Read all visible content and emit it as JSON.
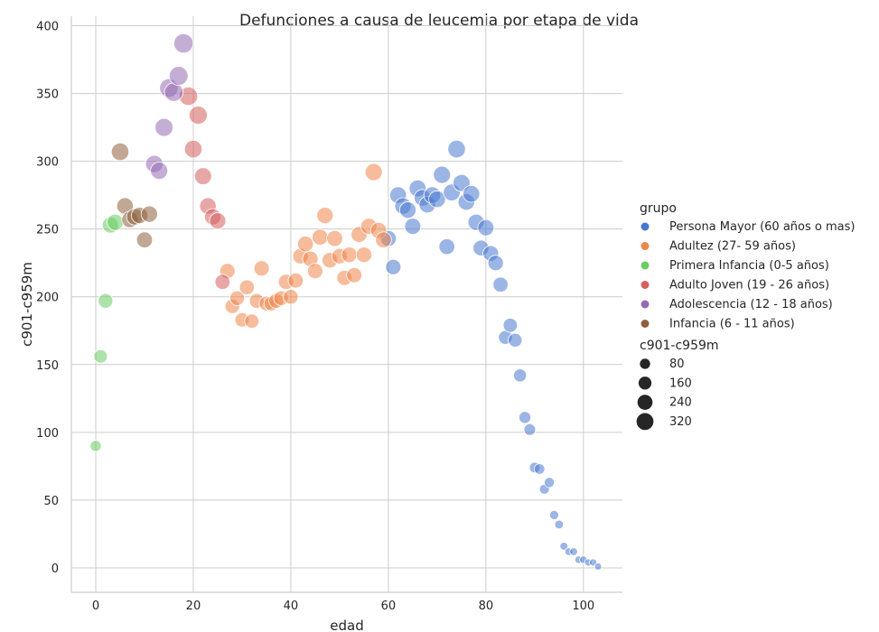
{
  "chart_data": {
    "type": "scatter",
    "title": "Defunciones a causa de leucemia por etapa de vida",
    "xlabel": "edad",
    "ylabel": "c901-c959m",
    "xlim": [
      -5,
      108
    ],
    "ylim": [
      -18,
      407
    ],
    "xticks": [
      0,
      20,
      40,
      60,
      80,
      100
    ],
    "yticks": [
      0,
      50,
      100,
      150,
      200,
      250,
      300,
      350,
      400
    ],
    "grid": true,
    "legend_position": "right",
    "hue_title": "grupo",
    "size_title": "c901-c959m",
    "size_legend_values": [
      80,
      160,
      240,
      320
    ],
    "series": [
      {
        "name": "Persona Mayor (60 años o mas)",
        "color": "#4878d0",
        "points": [
          [
            60,
            243
          ],
          [
            61,
            222
          ],
          [
            62,
            275
          ],
          [
            63,
            267
          ],
          [
            64,
            264
          ],
          [
            65,
            252
          ],
          [
            66,
            280
          ],
          [
            67,
            273
          ],
          [
            68,
            268
          ],
          [
            69,
            275
          ],
          [
            70,
            272
          ],
          [
            71,
            290
          ],
          [
            72,
            237
          ],
          [
            73,
            277
          ],
          [
            74,
            309
          ],
          [
            75,
            284
          ],
          [
            76,
            270
          ],
          [
            77,
            276
          ],
          [
            78,
            255
          ],
          [
            79,
            236
          ],
          [
            80,
            251
          ],
          [
            81,
            232
          ],
          [
            82,
            225
          ],
          [
            83,
            209
          ],
          [
            84,
            170
          ],
          [
            85,
            179
          ],
          [
            86,
            168
          ],
          [
            87,
            142
          ],
          [
            88,
            111
          ],
          [
            89,
            102
          ],
          [
            90,
            74
          ],
          [
            91,
            73
          ],
          [
            92,
            58
          ],
          [
            93,
            63
          ],
          [
            94,
            39
          ],
          [
            95,
            32
          ],
          [
            96,
            16
          ],
          [
            97,
            12
          ],
          [
            98,
            12
          ],
          [
            99,
            6
          ],
          [
            100,
            6
          ],
          [
            101,
            4
          ],
          [
            102,
            4
          ],
          [
            103,
            1
          ]
        ]
      },
      {
        "name": "Adultez (27- 59 años)",
        "color": "#ee854a",
        "points": [
          [
            27,
            219
          ],
          [
            28,
            193
          ],
          [
            29,
            199
          ],
          [
            30,
            183
          ],
          [
            31,
            207
          ],
          [
            32,
            182
          ],
          [
            33,
            197
          ],
          [
            34,
            221
          ],
          [
            35,
            195
          ],
          [
            36,
            195
          ],
          [
            37,
            197
          ],
          [
            38,
            199
          ],
          [
            39,
            211
          ],
          [
            40,
            200
          ],
          [
            41,
            212
          ],
          [
            42,
            230
          ],
          [
            43,
            239
          ],
          [
            44,
            228
          ],
          [
            45,
            219
          ],
          [
            46,
            244
          ],
          [
            47,
            260
          ],
          [
            48,
            227
          ],
          [
            49,
            243
          ],
          [
            50,
            230
          ],
          [
            51,
            214
          ],
          [
            52,
            231
          ],
          [
            53,
            216
          ],
          [
            54,
            246
          ],
          [
            55,
            231
          ],
          [
            56,
            252
          ],
          [
            57,
            292
          ],
          [
            58,
            249
          ],
          [
            59,
            242
          ]
        ]
      },
      {
        "name": "Primera Infancia (0-5 años)",
        "color": "#6acc64",
        "points": [
          [
            0,
            90
          ],
          [
            1,
            156
          ],
          [
            2,
            197
          ],
          [
            3,
            253
          ],
          [
            4,
            255
          ]
        ]
      },
      {
        "name": "Adulto Joven (19 - 26 años)",
        "color": "#d65f5f",
        "points": [
          [
            19,
            348
          ],
          [
            20,
            309
          ],
          [
            21,
            334
          ],
          [
            22,
            289
          ],
          [
            23,
            267
          ],
          [
            24,
            259
          ],
          [
            25,
            256
          ],
          [
            26,
            211
          ]
        ]
      },
      {
        "name": "Adolescencia (12 - 18 años)",
        "color": "#956cb4",
        "points": [
          [
            12,
            298
          ],
          [
            13,
            293
          ],
          [
            14,
            325
          ],
          [
            15,
            354
          ],
          [
            16,
            351
          ],
          [
            17,
            363
          ],
          [
            18,
            387
          ]
        ]
      },
      {
        "name": "Infancia (6 - 11 años)",
        "color": "#8c613c",
        "points": [
          [
            5,
            307
          ],
          [
            6,
            267
          ],
          [
            7,
            257
          ],
          [
            8,
            259
          ],
          [
            9,
            260
          ],
          [
            10,
            242
          ],
          [
            11,
            261
          ]
        ]
      }
    ]
  }
}
